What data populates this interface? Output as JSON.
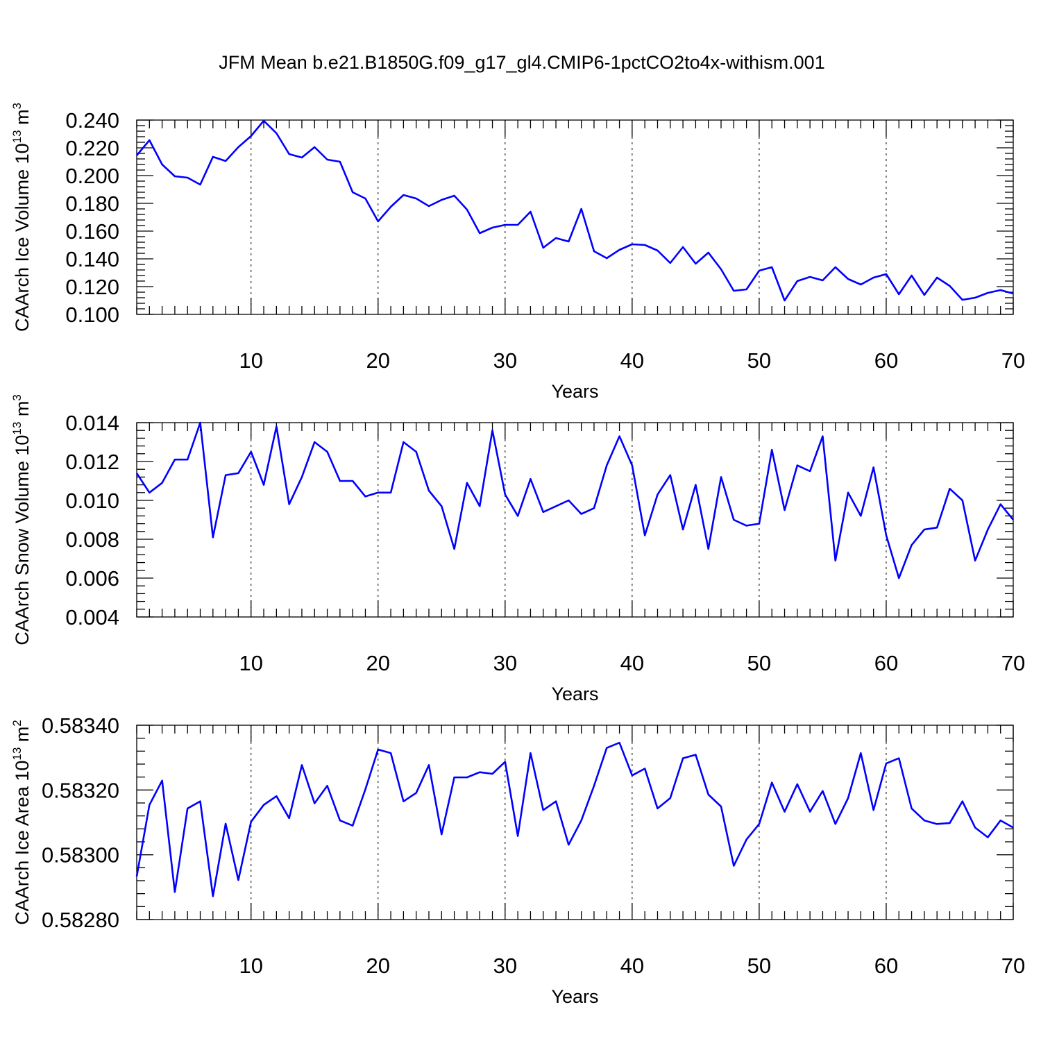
{
  "figure": {
    "title": "JFM Mean b.e21.B1850G.f09_g17_gl4.CMIP6-1pctCO2to4x-withism.001"
  },
  "colors": {
    "line": "#0000ff",
    "axis": "#000000"
  },
  "chart_data": [
    {
      "type": "line",
      "ylabel": "CAArch Ice Volume 10",
      "ylabel_exp": "13",
      "ylabel_unit": " m",
      "ylabel_unit_exp": "3",
      "xlabel": "Years",
      "xlim": [
        1,
        70
      ],
      "ylim": [
        0.1,
        0.24
      ],
      "x_ticks": [
        10,
        20,
        30,
        40,
        50,
        60,
        70
      ],
      "x_tick_labels": [
        "10",
        "20",
        "30",
        "40",
        "50",
        "60",
        "70"
      ],
      "y_ticks": [
        0.1,
        0.12,
        0.14,
        0.16,
        0.18,
        0.2,
        0.22,
        0.24
      ],
      "y_tick_labels": [
        "0.100",
        "0.120",
        "0.140",
        "0.160",
        "0.180",
        "0.200",
        "0.220",
        "0.240"
      ],
      "values": [
        0.2145,
        0.2255,
        0.208,
        0.1995,
        0.1985,
        0.1935,
        0.2135,
        0.2105,
        0.2205,
        0.2285,
        0.2395,
        0.2305,
        0.2155,
        0.213,
        0.2205,
        0.2115,
        0.21,
        0.188,
        0.1835,
        0.167,
        0.1775,
        0.186,
        0.1835,
        0.178,
        0.1825,
        0.1855,
        0.1755,
        0.1585,
        0.1625,
        0.1645,
        0.1645,
        0.174,
        0.148,
        0.155,
        0.1525,
        0.176,
        0.1455,
        0.1405,
        0.1465,
        0.1505,
        0.15,
        0.146,
        0.137,
        0.1485,
        0.1365,
        0.1445,
        0.1325,
        0.117,
        0.118,
        0.1315,
        0.134,
        0.11,
        0.124,
        0.127,
        0.1245,
        0.134,
        0.1255,
        0.1215,
        0.1265,
        0.129,
        0.1145,
        0.128,
        0.114,
        0.1265,
        0.1205,
        0.1105,
        0.112,
        0.1155,
        0.1175,
        0.115
      ]
    },
    {
      "type": "line",
      "ylabel": "CAArch Snow Volume 10",
      "ylabel_exp": "13",
      "ylabel_unit": " m",
      "ylabel_unit_exp": "3",
      "xlabel": "Years",
      "xlim": [
        1,
        70
      ],
      "ylim": [
        0.004,
        0.014
      ],
      "x_ticks": [
        10,
        20,
        30,
        40,
        50,
        60,
        70
      ],
      "x_tick_labels": [
        "10",
        "20",
        "30",
        "40",
        "50",
        "60",
        "70"
      ],
      "y_ticks": [
        0.004,
        0.006,
        0.008,
        0.01,
        0.012,
        0.014
      ],
      "y_tick_labels": [
        "0.004",
        "0.006",
        "0.008",
        "0.010",
        "0.012",
        "0.014"
      ],
      "values": [
        0.0114,
        0.0104,
        0.0109,
        0.0121,
        0.0121,
        0.014,
        0.0081,
        0.0113,
        0.0114,
        0.0125,
        0.0108,
        0.0138,
        0.0098,
        0.0112,
        0.013,
        0.0125,
        0.011,
        0.011,
        0.0102,
        0.0104,
        0.0104,
        0.013,
        0.0125,
        0.0105,
        0.0097,
        0.0075,
        0.0109,
        0.0097,
        0.0136,
        0.0103,
        0.0092,
        0.0111,
        0.0094,
        0.0097,
        0.01,
        0.0093,
        0.0096,
        0.0118,
        0.0133,
        0.0118,
        0.0082,
        0.0103,
        0.0113,
        0.0085,
        0.0108,
        0.0075,
        0.0112,
        0.009,
        0.0087,
        0.0088,
        0.0126,
        0.0095,
        0.0118,
        0.0115,
        0.0133,
        0.0069,
        0.0104,
        0.0092,
        0.0117,
        0.0082,
        0.006,
        0.0077,
        0.0085,
        0.0086,
        0.0106,
        0.01,
        0.0069,
        0.0085,
        0.0098,
        0.009
      ]
    },
    {
      "type": "line",
      "ylabel": "CAArch Ice Area 10",
      "ylabel_exp": "13",
      "ylabel_unit": " m",
      "ylabel_unit_exp": "2",
      "xlabel": "Years",
      "xlim": [
        1,
        70
      ],
      "ylim": [
        0.5828,
        0.5834
      ],
      "x_ticks": [
        10,
        20,
        30,
        40,
        50,
        60,
        70
      ],
      "x_tick_labels": [
        "10",
        "20",
        "30",
        "40",
        "50",
        "60",
        "70"
      ],
      "y_ticks": [
        0.5828,
        0.583,
        0.5832,
        0.5834
      ],
      "y_tick_labels": [
        "0.58280",
        "0.58300",
        "0.58320",
        "0.58340"
      ],
      "values": [
        0.582933,
        0.583154,
        0.583229,
        0.582885,
        0.583143,
        0.583165,
        0.582872,
        0.583096,
        0.582922,
        0.583102,
        0.583154,
        0.583181,
        0.583113,
        0.583277,
        0.583159,
        0.583213,
        0.583106,
        0.58309,
        0.583202,
        0.583325,
        0.583314,
        0.583165,
        0.583191,
        0.583277,
        0.583063,
        0.583239,
        0.583239,
        0.583255,
        0.58325,
        0.583287,
        0.583058,
        0.583314,
        0.583138,
        0.583165,
        0.583031,
        0.583106,
        0.583213,
        0.58333,
        0.583346,
        0.583245,
        0.583266,
        0.583143,
        0.583175,
        0.583298,
        0.583309,
        0.583186,
        0.583149,
        0.582966,
        0.583047,
        0.583095,
        0.583223,
        0.583133,
        0.583218,
        0.583133,
        0.583197,
        0.583095,
        0.583175,
        0.583314,
        0.583138,
        0.583282,
        0.583298,
        0.583143,
        0.583106,
        0.583095,
        0.583098,
        0.583165,
        0.583084,
        0.583054,
        0.583106,
        0.583084
      ]
    }
  ]
}
